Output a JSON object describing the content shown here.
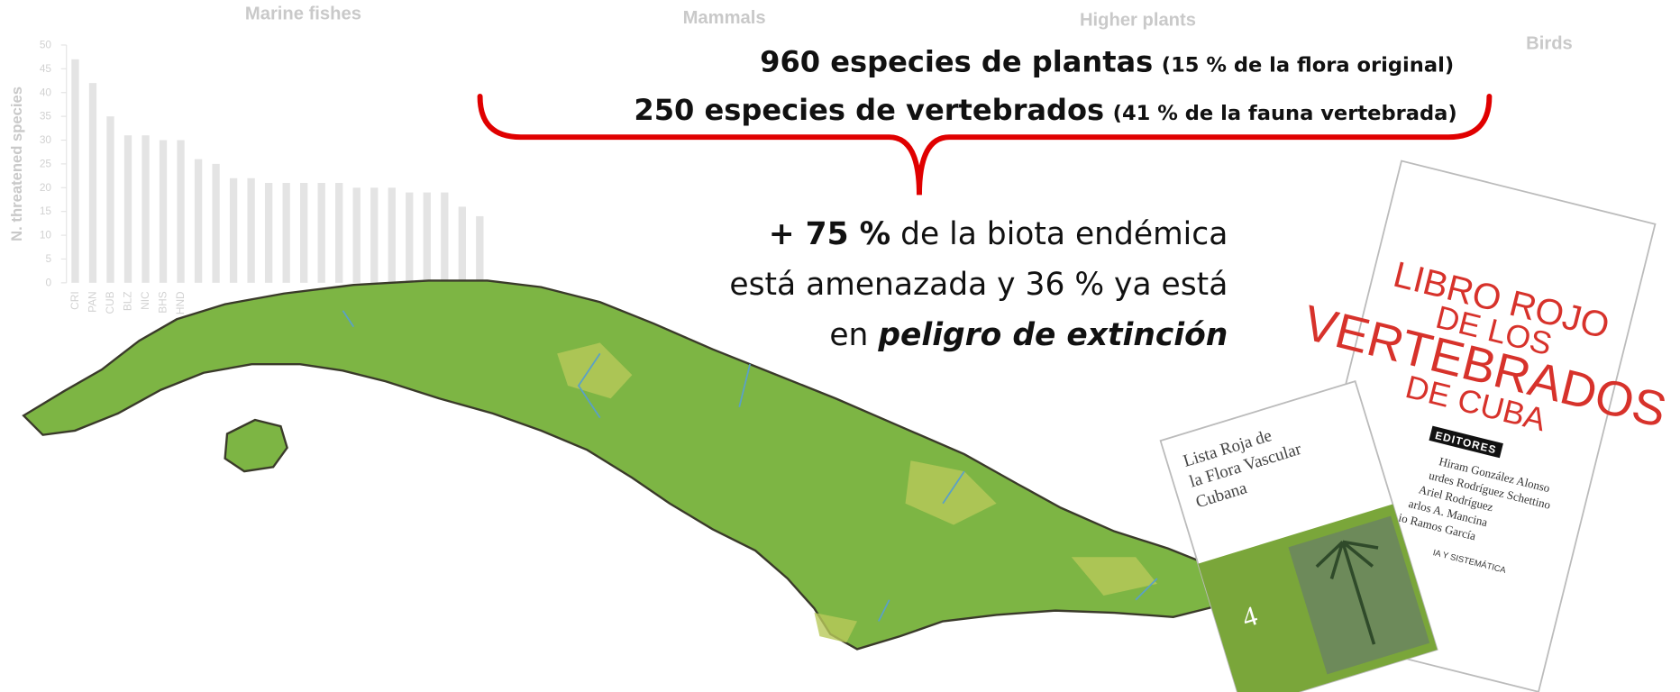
{
  "background_charts": [
    {
      "title": "Marine fishes",
      "y_label": "N. threatened species",
      "ylim": [
        0,
        50
      ],
      "yticks": [
        0,
        5,
        10,
        15,
        20,
        25,
        30,
        35,
        40,
        45,
        50
      ],
      "color": "#e4e4e4",
      "categories": [
        "CRI",
        "PAN",
        "CUB",
        "BLZ",
        "NIC",
        "BHS",
        "HND",
        null,
        null,
        null,
        null,
        null,
        null,
        null,
        null,
        null,
        null,
        null,
        null,
        null,
        null,
        null,
        null,
        null
      ],
      "values": [
        47,
        42,
        35,
        31,
        31,
        30,
        30,
        26,
        25,
        22,
        22,
        21,
        21,
        21,
        21,
        21,
        20,
        20,
        20,
        19,
        19,
        19,
        16,
        14
      ]
    },
    {
      "title": "Mammals"
    },
    {
      "title": "Higher plants"
    },
    {
      "title": "Birds"
    }
  ],
  "headline": {
    "line1": {
      "main": "960 especies de plantas",
      "note": "(15 % de la flora original)"
    },
    "line2": {
      "main": "250 especies de vertebrados",
      "note": "(41 % de la fauna vertebrada)"
    }
  },
  "statement": {
    "bold": "+ 75 %",
    "line1_rest": " de la biota endémica",
    "line2": "está amenazada y 36 % ya está",
    "line3_prefix": "en ",
    "line3_emph": "peligro de extinción"
  },
  "books": {
    "vertebrados": {
      "title_lines": [
        "LIBRO ROJO",
        "DE LOS",
        "VERTEBRADOS",
        "DE CUBA"
      ],
      "editors_label": "EDITORES",
      "editors": [
        "Hiram González Alonso",
        "urdes Rodríguez Schettino",
        "Ariel Rodríguez",
        "arlos A. Mancina",
        "io Ramos García"
      ],
      "footer": "IA Y SISTEMÁTICA"
    },
    "flora": {
      "title_lines": [
        "Lista Roja de",
        "la Flora Vascular",
        "Cubana"
      ],
      "number": "4"
    }
  }
}
